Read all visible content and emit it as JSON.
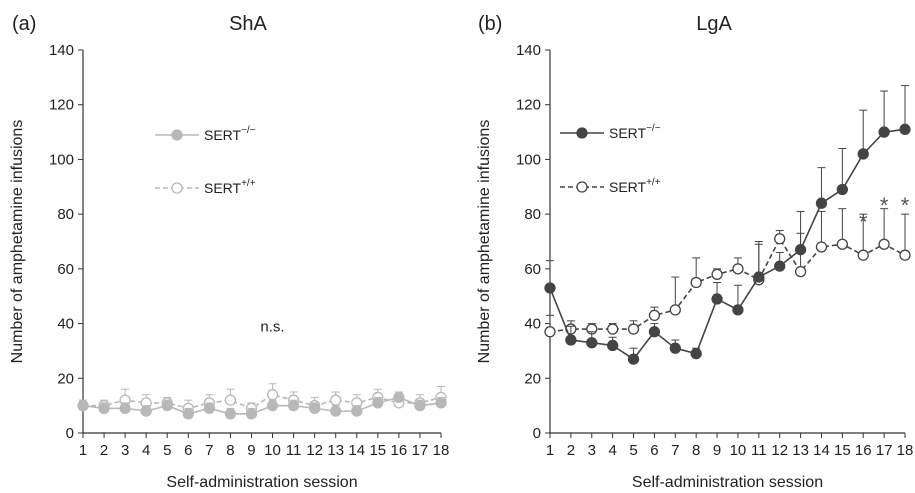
{
  "chart_data": [
    {
      "type": "line",
      "panel_label": "(a)",
      "title": "ShA",
      "xlabel": "Self-administration session",
      "ylabel": "Number of amphetamine infusions",
      "x": [
        1,
        2,
        3,
        4,
        5,
        6,
        7,
        8,
        9,
        10,
        11,
        12,
        13,
        14,
        15,
        16,
        17,
        18
      ],
      "x_tick_labels": [
        "1",
        "2",
        "3",
        "4",
        "5",
        "6",
        "7",
        "8",
        "9",
        "10",
        "11",
        "12",
        "13",
        "14",
        "15",
        "16",
        "17",
        "18"
      ],
      "xlim": [
        1,
        18
      ],
      "ylim": [
        0,
        140
      ],
      "y_ticks": [
        0,
        20,
        40,
        60,
        80,
        100,
        120,
        140
      ],
      "y_tick_labels": [
        "0",
        "20",
        "40",
        "60",
        "80",
        "100",
        "120",
        "140"
      ],
      "grid": false,
      "legend_position": "upper-left",
      "color": "#b8b8b8",
      "series": [
        {
          "name_base": "SERT",
          "name_sup": "−/−",
          "marker": "filled-circle",
          "line_style": "solid",
          "values": [
            10,
            9,
            9,
            8,
            10,
            7,
            9,
            7,
            7,
            10,
            10,
            9,
            8,
            8,
            11,
            13,
            10,
            11
          ],
          "errors": [
            2,
            2,
            2,
            2,
            2,
            2,
            2,
            2,
            2,
            2,
            2,
            2,
            2,
            2,
            2,
            2,
            2,
            2
          ]
        },
        {
          "name_base": "SERT",
          "name_sup": "+/+",
          "marker": "open-circle",
          "line_style": "dashed",
          "values": [
            10,
            10,
            12,
            11,
            11,
            9,
            11,
            12,
            9,
            14,
            12,
            10,
            12,
            11,
            13,
            11,
            11,
            13
          ],
          "errors": [
            2,
            2,
            4,
            3,
            2,
            3,
            3,
            4,
            2,
            4,
            3,
            3,
            3,
            3,
            3,
            3,
            3,
            4
          ]
        }
      ],
      "annotations": [
        {
          "text": "n.s.",
          "x": 10,
          "y": 39
        }
      ]
    },
    {
      "type": "line",
      "panel_label": "(b)",
      "title": "LgA",
      "xlabel": "Self-administration session",
      "ylabel": "Number of amphetamine infusions",
      "x": [
        1,
        2,
        3,
        4,
        5,
        6,
        7,
        8,
        9,
        10,
        11,
        12,
        13,
        14,
        15,
        16,
        17,
        18
      ],
      "x_tick_labels": [
        "1",
        "2",
        "3",
        "4",
        "5",
        "6",
        "7",
        "8",
        "9",
        "10",
        "11",
        "12",
        "13",
        "14",
        "15",
        "16",
        "17",
        "18"
      ],
      "xlim": [
        1,
        18
      ],
      "ylim": [
        0,
        140
      ],
      "y_ticks": [
        0,
        20,
        40,
        60,
        80,
        100,
        120,
        140
      ],
      "y_tick_labels": [
        "0",
        "20",
        "40",
        "60",
        "80",
        "100",
        "120",
        "140"
      ],
      "grid": false,
      "legend_position": "upper-left",
      "color": "#444444",
      "series": [
        {
          "name_base": "SERT",
          "name_sup": "−/−",
          "marker": "filled-circle",
          "line_style": "solid",
          "values": [
            53,
            34,
            33,
            32,
            27,
            37,
            31,
            29,
            49,
            45,
            57,
            61,
            67,
            84,
            89,
            102,
            110,
            111
          ],
          "errors": [
            10,
            5,
            4,
            3,
            4,
            3,
            3,
            2,
            6,
            9,
            13,
            5,
            14,
            13,
            15,
            16,
            15,
            16
          ]
        },
        {
          "name_base": "SERT",
          "name_sup": "+/+",
          "marker": "open-circle",
          "line_style": "dashed",
          "values": [
            37,
            38,
            38,
            38,
            38,
            43,
            45,
            55,
            58,
            60,
            56,
            71,
            59,
            68,
            69,
            65,
            69,
            65
          ],
          "errors": [
            6,
            3,
            2,
            2,
            3,
            3,
            12,
            9,
            2,
            4,
            13,
            3,
            14,
            13,
            13,
            15,
            13,
            15
          ]
        }
      ],
      "annotations": [
        {
          "text": "*",
          "x": 16,
          "y": 78
        },
        {
          "text": "*",
          "x": 17,
          "y": 84
        },
        {
          "text": "*",
          "x": 18,
          "y": 84
        }
      ]
    }
  ]
}
